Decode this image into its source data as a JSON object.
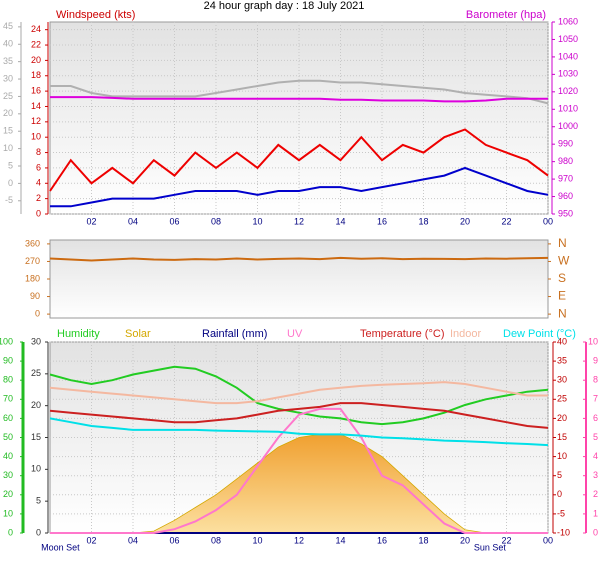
{
  "chart_data": [
    {
      "type": "line",
      "title": "24 hour graph day : 18 July 2021",
      "y_label": "Windspeed (kts)",
      "y2_label": "Barometer (hpa)",
      "x": [
        0,
        1,
        2,
        3,
        4,
        5,
        6,
        7,
        8,
        9,
        10,
        11,
        12,
        13,
        14,
        15,
        16,
        17,
        18,
        19,
        20,
        21,
        22,
        23,
        24
      ],
      "xlim": [
        0,
        24
      ],
      "xticks": [
        {
          "value": 2,
          "label": "02"
        },
        {
          "value": 4,
          "label": "04"
        },
        {
          "value": 6,
          "label": "06"
        },
        {
          "value": 8,
          "label": "08"
        },
        10,
        12,
        14,
        16,
        18,
        20,
        22,
        {
          "value": 24,
          "label": "00"
        }
      ],
      "ylim": [
        0,
        25
      ],
      "yticks": [
        0,
        2,
        4,
        6,
        8,
        10,
        12,
        14,
        16,
        18,
        20,
        22,
        24
      ],
      "y2lim": [
        950,
        1060
      ],
      "y2ticks": [
        950,
        960,
        970,
        980,
        990,
        1000,
        1010,
        1020,
        1030,
        1040,
        1050,
        1060
      ],
      "y3lim": [
        -8.8,
        46.4
      ],
      "y3ticks": [
        -5,
        0,
        5,
        10,
        15,
        20,
        25,
        30,
        35,
        40,
        45
      ],
      "grid": true,
      "series": [
        {
          "color": "#b0b0b0",
          "axis": "y3",
          "values": [
            28,
            28,
            26,
            25,
            25,
            25,
            25,
            25,
            26,
            27,
            28,
            29,
            29.5,
            29.5,
            29,
            29,
            28.5,
            28,
            27.5,
            27,
            26,
            25.5,
            25,
            24.5,
            23
          ]
        },
        {
          "color": "#ee0000",
          "values": [
            3,
            7,
            4,
            6,
            4,
            7,
            5,
            8,
            6,
            8,
            6,
            9,
            7,
            9,
            7,
            10,
            7,
            9,
            8,
            10,
            11,
            9,
            8,
            7,
            5
          ]
        },
        {
          "color": "#0000cc",
          "values": [
            1,
            1,
            1.5,
            2,
            2,
            2,
            2.5,
            3,
            3,
            3,
            2.5,
            3,
            3,
            3.5,
            3.5,
            3,
            3.5,
            4,
            4.5,
            5,
            6,
            5,
            4,
            3,
            2.5
          ]
        },
        {
          "color": "#dd00dd",
          "axis": "y2",
          "values": [
            1017,
            1017,
            1017,
            1016.5,
            1016,
            1016,
            1016,
            1016,
            1016,
            1016,
            1016,
            1016,
            1016,
            1016,
            1015.5,
            1015.5,
            1015,
            1015,
            1015,
            1014.5,
            1014.5,
            1015,
            1016,
            1016,
            1016
          ]
        }
      ]
    },
    {
      "type": "line",
      "x": [
        0,
        1,
        2,
        3,
        4,
        5,
        6,
        7,
        8,
        9,
        10,
        11,
        12,
        13,
        14,
        15,
        16,
        17,
        18,
        19,
        20,
        21,
        22,
        23,
        24
      ],
      "xlim": [
        0,
        24
      ],
      "ylim": [
        -20,
        380
      ],
      "yticks": [
        0,
        90,
        180,
        270,
        360
      ],
      "y2lim": [
        -20,
        380
      ],
      "y2ticks": [
        {
          "value": 0,
          "label": "N"
        },
        {
          "value": 90,
          "label": "E"
        },
        {
          "value": 180,
          "label": "S"
        },
        {
          "value": 270,
          "label": "W"
        },
        {
          "value": 360,
          "label": "N"
        }
      ],
      "series": [
        {
          "color": "#cc6a10",
          "values": [
            285,
            280,
            275,
            280,
            285,
            280,
            278,
            282,
            280,
            285,
            280,
            283,
            285,
            282,
            288,
            284,
            286,
            282,
            284,
            283,
            282,
            285,
            284,
            286,
            288
          ]
        }
      ]
    },
    {
      "type": "line",
      "x": [
        0,
        1,
        2,
        3,
        4,
        5,
        6,
        7,
        8,
        9,
        10,
        11,
        12,
        13,
        14,
        15,
        16,
        17,
        18,
        19,
        20,
        21,
        22,
        23,
        24
      ],
      "xlim": [
        0,
        24
      ],
      "xticks": [
        {
          "value": 2,
          "label": "02"
        },
        {
          "value": 4,
          "label": "04"
        },
        {
          "value": 6,
          "label": "06"
        },
        {
          "value": 8,
          "label": "08"
        },
        10,
        12,
        14,
        16,
        18,
        20,
        22,
        {
          "value": 24,
          "label": "00"
        }
      ],
      "ylim": [
        0,
        100
      ],
      "yticks": [
        0,
        10,
        20,
        30,
        40,
        50,
        60,
        70,
        80,
        90,
        100
      ],
      "y2lim": [
        -10,
        40
      ],
      "y2ticks": [
        -10,
        -5,
        0,
        5,
        10,
        15,
        20,
        25,
        30,
        35,
        40
      ],
      "y3lim": [
        0,
        30
      ],
      "y3ticks": [
        0,
        5,
        10,
        15,
        20,
        25,
        30
      ],
      "y4lim": [
        0,
        10
      ],
      "y4ticks": [
        0,
        1,
        2,
        3,
        4,
        5,
        6,
        7,
        8,
        9,
        10
      ],
      "grid": true,
      "annotations": [
        {
          "text": "Moon Set",
          "x": 0.5
        },
        {
          "text": "Sun Set",
          "x": 21.2
        }
      ],
      "series": [
        {
          "name": "Humidity",
          "color": "#22cc22",
          "values": [
            83,
            80,
            78,
            80,
            83,
            85,
            87,
            86,
            82,
            76,
            68,
            65,
            63,
            61,
            60,
            58,
            57,
            58,
            60,
            63,
            67,
            70,
            72,
            74,
            75
          ]
        },
        {
          "name": "Solar",
          "color": "#d4a800",
          "axis": "y3",
          "area": true,
          "values": [
            0,
            0,
            0,
            0,
            0,
            0.3,
            2,
            4,
            6,
            8.5,
            11,
            13.5,
            15,
            15.5,
            15.5,
            14,
            12,
            9,
            6,
            3,
            0.5,
            0,
            0,
            0,
            0
          ]
        },
        {
          "name": "Rainfall (mm)",
          "color": "#000080",
          "axis": "y3",
          "values": [
            0,
            0,
            0,
            0,
            0,
            0,
            0,
            0,
            0,
            0,
            0,
            0,
            0,
            0,
            0,
            0,
            0,
            0,
            0,
            0,
            0,
            0,
            0,
            0,
            0
          ]
        },
        {
          "name": "UV",
          "color": "#ff77cc",
          "axis": "y4",
          "values": [
            0,
            0,
            0,
            0,
            0,
            0,
            0.2,
            0.6,
            1.2,
            2,
            3.5,
            5,
            6.2,
            6.5,
            6.5,
            5,
            3,
            2.5,
            1.5,
            0.5,
            0,
            0,
            0,
            0,
            0
          ]
        },
        {
          "name": "Temperature (°C)",
          "color": "#cc2020",
          "axis": "y2",
          "values": [
            22,
            21.5,
            21,
            20.5,
            20,
            19.5,
            19,
            19,
            19.5,
            20,
            21,
            22,
            22.5,
            23,
            24,
            24,
            23.5,
            23,
            22.5,
            22,
            21,
            20,
            19,
            18,
            17.5
          ]
        },
        {
          "name": "Indoor",
          "color": "#f4b8a0",
          "axis": "y2",
          "values": [
            28,
            27.5,
            27,
            26.5,
            26,
            25.5,
            25,
            24.5,
            24,
            24,
            24.5,
            25.5,
            26.5,
            27.5,
            28,
            28.5,
            28.8,
            29,
            29.2,
            29.5,
            29,
            28,
            27,
            26,
            26
          ]
        },
        {
          "name": "Dew Point (°C)",
          "color": "#00e0e8",
          "axis": "y2",
          "values": [
            20,
            19,
            18,
            17.5,
            17,
            17,
            17,
            17,
            16.8,
            16.7,
            16.6,
            16.5,
            16,
            15.8,
            15.8,
            15.5,
            15,
            14.8,
            14.5,
            14.2,
            14,
            13.8,
            13.5,
            13.3,
            13
          ]
        }
      ]
    }
  ]
}
